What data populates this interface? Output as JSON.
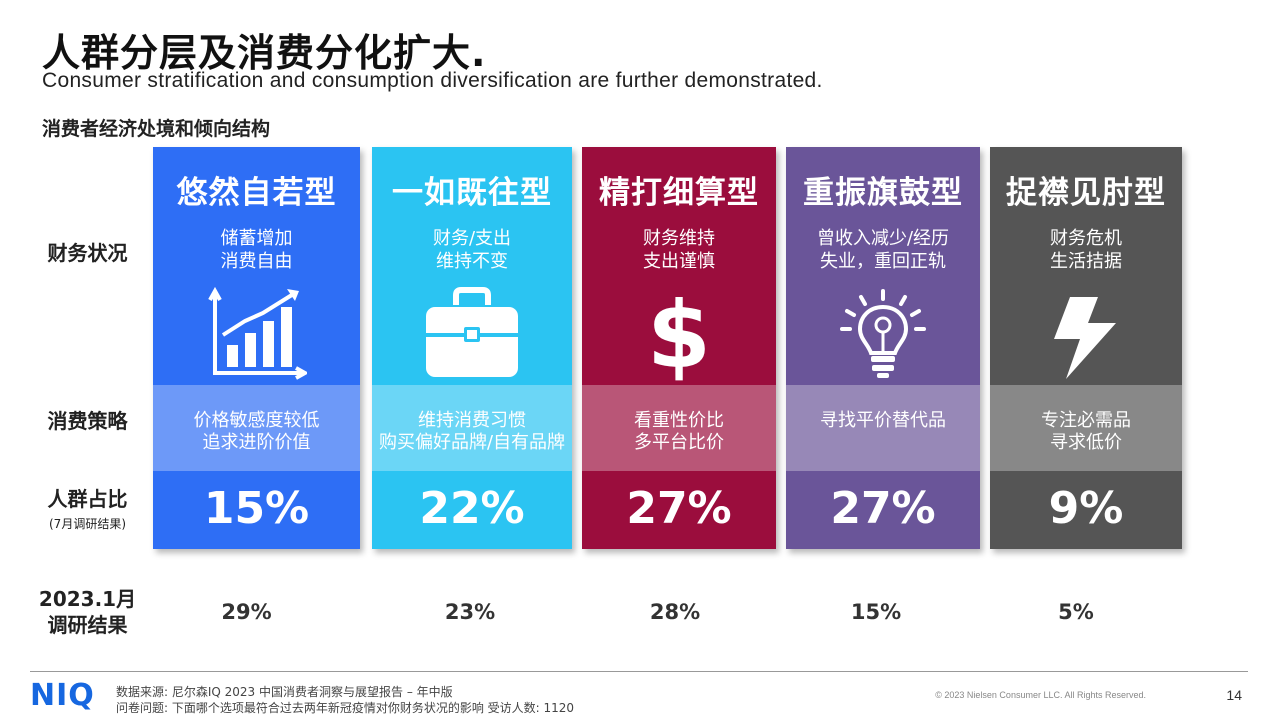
{
  "title": "人群分层及消费分化扩大.",
  "subtitle": "Consumer stratification and consumption diversification are further demonstrated.",
  "section_title": "消费者经济处境和倾向结构",
  "row_labels": {
    "finance": "财务状况",
    "strategy": "消费策略",
    "share": "人群占比",
    "share_sub": "(7月调研结果)",
    "prior_line1": "2023.1月",
    "prior_line2": "调研结果"
  },
  "cards": [
    {
      "name": "悠然自若型",
      "fin1": "储蓄增加",
      "fin2": "消费自由",
      "icon": "growth-chart-icon",
      "strat1": "价格敏感度较低",
      "strat2": "追求进阶价值",
      "pct": "15%",
      "prior": "29%",
      "color": "#2e6ef5"
    },
    {
      "name": "一如既往型",
      "fin1": "财务/支出",
      "fin2": "维持不变",
      "icon": "briefcase-icon",
      "strat1": "维持消费习惯",
      "strat2": "购买偏好品牌/自有品牌",
      "pct": "22%",
      "prior": "23%",
      "color": "#2bc4f2"
    },
    {
      "name": "精打细算型",
      "fin1": "财务维持",
      "fin2": "支出谨慎",
      "icon": "dollar-icon",
      "strat1": "看重性价比",
      "strat2": "多平台比价",
      "pct": "27%",
      "prior": "28%",
      "color": "#9b0d3d"
    },
    {
      "name": "重振旗鼓型",
      "fin1": "曾收入减少/经历",
      "fin2": "失业，重回正轨",
      "icon": "lightbulb-icon",
      "strat1": "寻找平价替代品",
      "strat2": "",
      "pct": "27%",
      "prior": "15%",
      "color": "#6a5599"
    },
    {
      "name": "捉襟见肘型",
      "fin1": "财务危机",
      "fin2": "生活拮据",
      "icon": "lightning-icon",
      "strat1": "专注必需品",
      "strat2": "寻求低价",
      "pct": "9%",
      "prior": "5%",
      "color": "#555555"
    }
  ],
  "footer": {
    "logo": "NIQ",
    "source_line1": "数据来源: 尼尔森IQ 2023 中国消费者洞察与展望报告 – 年中版",
    "source_line2": "问卷问题: 下面哪个选项最符合过去两年新冠疫情对你财务状况的影响  受访人数: 1120",
    "copyright": "© 2023 Nielsen Consumer LLC. All Rights Reserved.",
    "page": "14"
  }
}
